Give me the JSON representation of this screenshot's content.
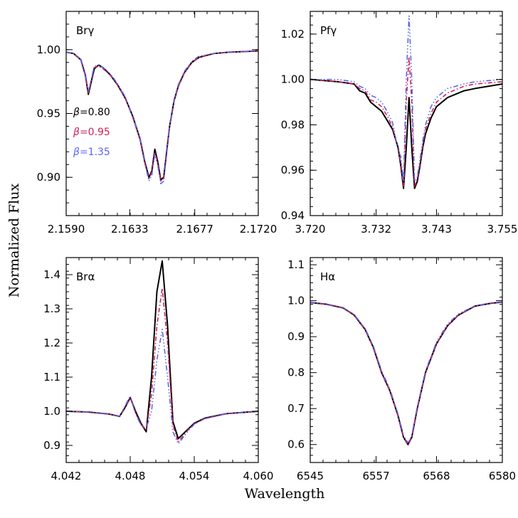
{
  "figure": {
    "ylabel": "Normalized Flux",
    "xlabel": "Wavelength"
  },
  "series_styles": [
    {
      "color": "#000000",
      "dash": "",
      "width": 2.0
    },
    {
      "color": "#cc2255",
      "dash": "6,3,1.5,3",
      "width": 1.6
    },
    {
      "color": "#5a66ee",
      "dash": "7,3,1.5,3,1.5,3,1.5,3",
      "width": 1.6
    }
  ],
  "legend": {
    "entries": [
      {
        "symbol": "β",
        "text": "=0.80",
        "color": "#000000"
      },
      {
        "symbol": "β",
        "text": "=0.95",
        "color": "#cc2255"
      },
      {
        "symbol": "β",
        "text": "=1.35",
        "color": "#5a66ee"
      }
    ]
  },
  "chart_data": [
    {
      "type": "line",
      "label": "Brγ",
      "xlim": [
        2.159,
        2.172
      ],
      "ylim": [
        0.87,
        1.03
      ],
      "xticks": [
        2.159,
        2.1633,
        2.1677,
        2.172
      ],
      "xtick_labels": [
        "2.1590",
        "2.1633",
        "2.1677",
        "2.1720"
      ],
      "yticks": [
        0.9,
        0.95,
        1.0
      ],
      "ytick_labels": [
        "0.90",
        "0.95",
        "1.00"
      ],
      "series": [
        {
          "name": "β=0.80",
          "x": [
            2.159,
            2.1595,
            2.16,
            2.1603,
            2.1605,
            2.1607,
            2.1609,
            2.1612,
            2.1615,
            2.162,
            2.1625,
            2.163,
            2.1635,
            2.164,
            2.1643,
            2.1646,
            2.1648,
            2.165,
            2.1652,
            2.1654,
            2.1656,
            2.1658,
            2.166,
            2.1663,
            2.1666,
            2.167,
            2.1675,
            2.168,
            2.169,
            2.17,
            2.172
          ],
          "y": [
            0.998,
            0.997,
            0.992,
            0.98,
            0.965,
            0.975,
            0.985,
            0.988,
            0.986,
            0.98,
            0.972,
            0.962,
            0.948,
            0.93,
            0.913,
            0.9,
            0.905,
            0.922,
            0.912,
            0.898,
            0.9,
            0.92,
            0.94,
            0.96,
            0.972,
            0.982,
            0.99,
            0.994,
            0.997,
            0.998,
            0.999
          ]
        },
        {
          "name": "β=0.95",
          "x": [
            2.159,
            2.1595,
            2.16,
            2.1603,
            2.1605,
            2.1607,
            2.1609,
            2.1612,
            2.1615,
            2.162,
            2.1625,
            2.163,
            2.1635,
            2.164,
            2.1643,
            2.1646,
            2.1648,
            2.165,
            2.1652,
            2.1654,
            2.1656,
            2.1658,
            2.166,
            2.1663,
            2.1666,
            2.167,
            2.1675,
            2.168,
            2.169,
            2.17,
            2.172
          ],
          "y": [
            0.998,
            0.997,
            0.992,
            0.98,
            0.966,
            0.976,
            0.986,
            0.987,
            0.985,
            0.98,
            0.972,
            0.962,
            0.947,
            0.929,
            0.912,
            0.899,
            0.904,
            0.92,
            0.911,
            0.897,
            0.899,
            0.919,
            0.94,
            0.96,
            0.972,
            0.982,
            0.99,
            0.994,
            0.997,
            0.998,
            0.999
          ]
        },
        {
          "name": "β=1.35",
          "x": [
            2.159,
            2.1595,
            2.16,
            2.1603,
            2.1605,
            2.1607,
            2.1609,
            2.1612,
            2.1615,
            2.162,
            2.1625,
            2.163,
            2.1635,
            2.164,
            2.1643,
            2.1646,
            2.1648,
            2.165,
            2.1652,
            2.1654,
            2.1656,
            2.1658,
            2.166,
            2.1663,
            2.1666,
            2.167,
            2.1675,
            2.168,
            2.169,
            2.17,
            2.172
          ],
          "y": [
            0.998,
            0.997,
            0.992,
            0.981,
            0.967,
            0.977,
            0.987,
            0.988,
            0.986,
            0.981,
            0.973,
            0.963,
            0.948,
            0.93,
            0.912,
            0.897,
            0.902,
            0.918,
            0.909,
            0.895,
            0.897,
            0.918,
            0.94,
            0.961,
            0.973,
            0.983,
            0.991,
            0.995,
            0.997,
            0.998,
            0.999
          ]
        }
      ]
    },
    {
      "type": "line",
      "label": "Pfγ",
      "xlim": [
        3.72,
        3.755
      ],
      "ylim": [
        0.94,
        1.03
      ],
      "xticks": [
        3.72,
        3.732,
        3.743,
        3.755
      ],
      "xtick_labels": [
        "3.720",
        "3.732",
        "3.743",
        "3.755"
      ],
      "yticks": [
        0.94,
        0.96,
        0.98,
        1.0,
        1.02
      ],
      "ytick_labels": [
        "0.94",
        "0.96",
        "0.98",
        "1.00",
        "1.02"
      ],
      "series": [
        {
          "name": "β=0.80",
          "x": [
            3.72,
            3.725,
            3.728,
            3.729,
            3.73,
            3.731,
            3.732,
            3.733,
            3.734,
            3.735,
            3.736,
            3.7365,
            3.737,
            3.7375,
            3.738,
            3.7385,
            3.739,
            3.7395,
            3.74,
            3.7405,
            3.741,
            3.742,
            3.743,
            3.745,
            3.748,
            3.75,
            3.755
          ],
          "y": [
            1.0,
            0.999,
            0.998,
            0.995,
            0.994,
            0.99,
            0.988,
            0.986,
            0.982,
            0.978,
            0.97,
            0.962,
            0.952,
            0.97,
            0.992,
            0.97,
            0.952,
            0.955,
            0.962,
            0.97,
            0.976,
            0.983,
            0.988,
            0.992,
            0.995,
            0.996,
            0.998
          ]
        },
        {
          "name": "β=0.95",
          "x": [
            3.72,
            3.725,
            3.728,
            3.729,
            3.73,
            3.731,
            3.732,
            3.733,
            3.734,
            3.735,
            3.736,
            3.7365,
            3.737,
            3.7375,
            3.738,
            3.7385,
            3.739,
            3.7395,
            3.74,
            3.7405,
            3.741,
            3.742,
            3.743,
            3.745,
            3.748,
            3.75,
            3.755
          ],
          "y": [
            1.0,
            0.999,
            0.998,
            0.996,
            0.995,
            0.991,
            0.99,
            0.988,
            0.984,
            0.979,
            0.969,
            0.963,
            0.953,
            0.99,
            1.01,
            0.99,
            0.953,
            0.956,
            0.963,
            0.971,
            0.978,
            0.985,
            0.99,
            0.994,
            0.997,
            0.998,
            0.999
          ]
        },
        {
          "name": "β=1.35",
          "x": [
            3.72,
            3.725,
            3.728,
            3.729,
            3.73,
            3.731,
            3.732,
            3.733,
            3.734,
            3.735,
            3.736,
            3.7365,
            3.737,
            3.7375,
            3.738,
            3.7385,
            3.739,
            3.7395,
            3.74,
            3.7405,
            3.741,
            3.742,
            3.743,
            3.745,
            3.748,
            3.75,
            3.755
          ],
          "y": [
            1.0,
            1.0,
            0.999,
            0.997,
            0.996,
            0.993,
            0.992,
            0.99,
            0.986,
            0.981,
            0.969,
            0.966,
            0.955,
            1.0,
            1.028,
            1.0,
            0.955,
            0.957,
            0.965,
            0.973,
            0.98,
            0.988,
            0.992,
            0.996,
            0.998,
            0.999,
            1.0
          ]
        }
      ]
    },
    {
      "type": "line",
      "label": "Brα",
      "xlim": [
        4.042,
        4.06
      ],
      "ylim": [
        0.85,
        1.45
      ],
      "xticks": [
        4.042,
        4.048,
        4.054,
        4.06
      ],
      "xtick_labels": [
        "4.042",
        "4.048",
        "4.054",
        "4.060"
      ],
      "yticks": [
        0.9,
        1.0,
        1.1,
        1.2,
        1.3,
        1.4
      ],
      "ytick_labels": [
        "0.9",
        "1.0",
        "1.1",
        "1.2",
        "1.3",
        "1.4"
      ],
      "series": [
        {
          "name": "β=0.80",
          "x": [
            4.042,
            4.044,
            4.046,
            4.047,
            4.0475,
            4.048,
            4.0485,
            4.049,
            4.0495,
            4.05,
            4.0505,
            4.051,
            4.0515,
            4.052,
            4.0525,
            4.053,
            4.0535,
            4.054,
            4.055,
            4.057,
            4.06
          ],
          "y": [
            1.0,
            0.998,
            0.992,
            0.985,
            1.01,
            1.04,
            1.0,
            0.965,
            0.94,
            1.1,
            1.35,
            1.44,
            1.25,
            0.97,
            0.92,
            0.935,
            0.95,
            0.965,
            0.98,
            0.993,
            1.0
          ]
        },
        {
          "name": "β=0.95",
          "x": [
            4.042,
            4.044,
            4.046,
            4.047,
            4.0475,
            4.048,
            4.0485,
            4.049,
            4.0495,
            4.05,
            4.0505,
            4.051,
            4.0515,
            4.052,
            4.0525,
            4.053,
            4.0535,
            4.054,
            4.055,
            4.057,
            4.06
          ],
          "y": [
            1.0,
            0.998,
            0.992,
            0.985,
            1.012,
            1.04,
            0.995,
            0.962,
            0.945,
            1.05,
            1.25,
            1.36,
            1.2,
            0.96,
            0.91,
            0.93,
            0.948,
            0.963,
            0.979,
            0.993,
            1.0
          ]
        },
        {
          "name": "β=1.35",
          "x": [
            4.042,
            4.044,
            4.046,
            4.047,
            4.0475,
            4.048,
            4.0485,
            4.049,
            4.0495,
            4.05,
            4.0505,
            4.051,
            4.0515,
            4.052,
            4.0525,
            4.053,
            4.0535,
            4.054,
            4.055,
            4.057,
            4.06
          ],
          "y": [
            1.0,
            0.998,
            0.992,
            0.986,
            1.015,
            1.045,
            0.992,
            0.96,
            0.95,
            1.0,
            1.15,
            1.24,
            1.1,
            0.94,
            0.905,
            0.925,
            0.945,
            0.962,
            0.978,
            0.993,
            1.0
          ]
        }
      ]
    },
    {
      "type": "line",
      "label": "Hα",
      "xlim": [
        6545,
        6580
      ],
      "ylim": [
        0.55,
        1.12
      ],
      "xticks": [
        6545,
        6557,
        6568,
        6580
      ],
      "xtick_labels": [
        "6545",
        "6557",
        "6568",
        "6580"
      ],
      "yticks": [
        0.6,
        0.7,
        0.8,
        0.9,
        1.0,
        1.1
      ],
      "ytick_labels": [
        "0.6",
        "0.7",
        "0.8",
        "0.9",
        "1.0",
        "1.1"
      ],
      "series": [
        {
          "name": "β=0.80",
          "x": [
            6545,
            6548,
            6551,
            6553,
            6555,
            6556.5,
            6558,
            6559.5,
            6561,
            6562,
            6562.8,
            6563.5,
            6564.5,
            6566,
            6568,
            6570,
            6572,
            6575,
            6578,
            6580
          ],
          "y": [
            0.995,
            0.99,
            0.98,
            0.96,
            0.92,
            0.87,
            0.8,
            0.75,
            0.68,
            0.62,
            0.6,
            0.62,
            0.7,
            0.8,
            0.88,
            0.93,
            0.96,
            0.985,
            0.993,
            0.996
          ]
        },
        {
          "name": "β=0.95",
          "x": [
            6545,
            6548,
            6551,
            6553,
            6555,
            6556.5,
            6558,
            6559.5,
            6561,
            6562,
            6562.8,
            6563.5,
            6564.5,
            6566,
            6568,
            6570,
            6572,
            6575,
            6578,
            6580
          ],
          "y": [
            0.995,
            0.99,
            0.98,
            0.96,
            0.92,
            0.87,
            0.8,
            0.75,
            0.68,
            0.62,
            0.597,
            0.62,
            0.7,
            0.8,
            0.88,
            0.93,
            0.96,
            0.985,
            0.993,
            0.996
          ]
        },
        {
          "name": "β=1.35",
          "x": [
            6545,
            6548,
            6551,
            6553,
            6555,
            6556.5,
            6558,
            6559.5,
            6561,
            6562,
            6562.8,
            6563.5,
            6564.5,
            6566,
            6568,
            6570,
            6572,
            6575,
            6578,
            6580
          ],
          "y": [
            0.996,
            0.991,
            0.981,
            0.962,
            0.923,
            0.874,
            0.805,
            0.755,
            0.685,
            0.625,
            0.605,
            0.625,
            0.705,
            0.805,
            0.885,
            0.935,
            0.963,
            0.986,
            0.994,
            0.997
          ]
        }
      ]
    }
  ]
}
